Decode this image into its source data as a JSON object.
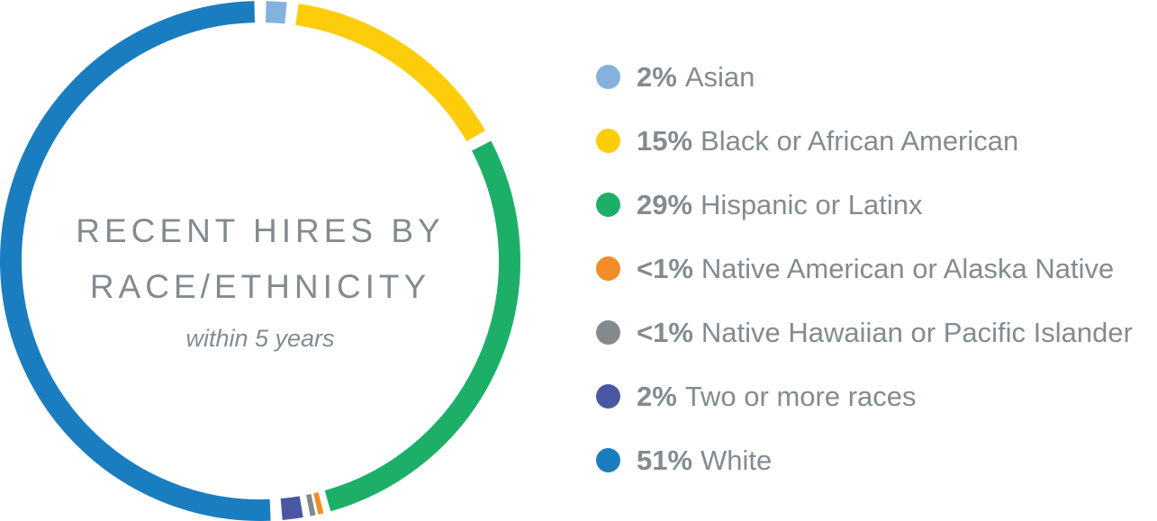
{
  "chart": {
    "title_line1": "RECENT HIRES BY",
    "title_line2": "RACE/ETHNICITY",
    "subtitle": "within 5 years"
  },
  "legend": [
    {
      "pct": "2%",
      "label": "Asian",
      "color": "#85b1dd"
    },
    {
      "pct": "15%",
      "label": "Black or African American",
      "color": "#fdcd0b"
    },
    {
      "pct": "29%",
      "label": "Hispanic or Latinx",
      "color": "#1daf68"
    },
    {
      "pct": "<1%",
      "label": "Native American or Alaska Native",
      "color": "#f28d28"
    },
    {
      "pct": "<1%",
      "label": "Native Hawaiian or Pacific Islander",
      "color": "#828a8f"
    },
    {
      "pct": "2%",
      "label": "Two or more races",
      "color": "#4a57a2"
    },
    {
      "pct": "51%",
      "label": "White",
      "color": "#1a7dbf"
    }
  ],
  "chart_data": {
    "type": "pie",
    "variant": "donut",
    "title": "Recent Hires by Race/Ethnicity",
    "subtitle": "within 5 years",
    "categories": [
      "Asian",
      "Black or African American",
      "Hispanic or Latinx",
      "Native American or Alaska Native",
      "Native Hawaiian or Pacific Islander",
      "Two or more races",
      "White"
    ],
    "values": [
      2,
      15,
      29,
      0.5,
      0.5,
      2,
      51
    ],
    "value_labels": [
      "2%",
      "15%",
      "29%",
      "<1%",
      "<1%",
      "2%",
      "51%"
    ],
    "colors": [
      "#85b1dd",
      "#fdcd0b",
      "#1daf68",
      "#f28d28",
      "#828a8f",
      "#4a57a2",
      "#1a7dbf"
    ],
    "legend_position": "right"
  }
}
